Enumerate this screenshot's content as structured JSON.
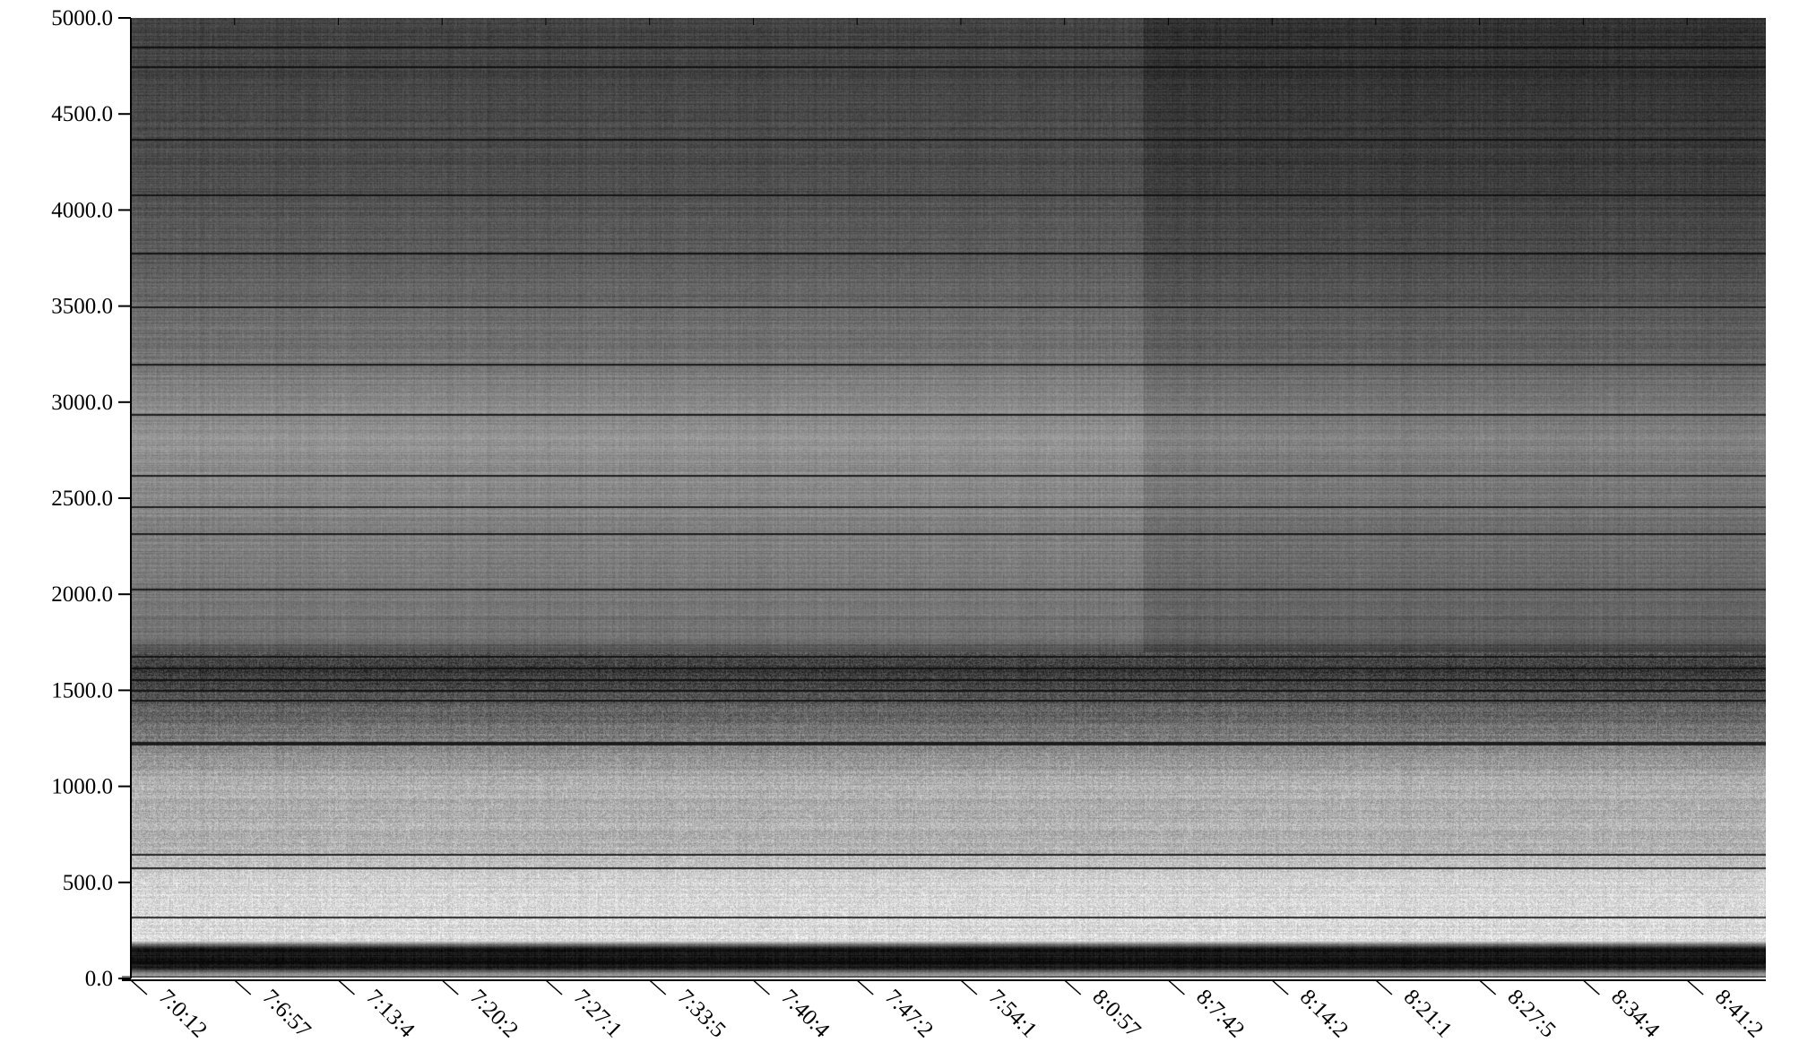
{
  "chart_data": {
    "type": "heatmap",
    "title": "",
    "xlabel": "",
    "ylabel": "",
    "colormap": "grayscale",
    "background": "#ffffff",
    "ylim": [
      0,
      5000
    ],
    "y_ticks": [
      0,
      500,
      1000,
      1500,
      2000,
      2500,
      3000,
      3500,
      4000,
      4500,
      5000
    ],
    "y_tick_labels": [
      "0.0",
      "500.0",
      "1000.0",
      "1500.0",
      "2000.0",
      "2500.0",
      "3000.0",
      "3500.0",
      "4000.0",
      "4500.0",
      "5000.0"
    ],
    "x_tick_labels": [
      "7:0:12",
      "7:6:57",
      "7:13:4",
      "7:20:2",
      "7:27:1",
      "7:33:5",
      "7:40:4",
      "7:47:2",
      "7:54:1",
      "8:0:57",
      "8:7:42",
      "8:14:2",
      "8:21:1",
      "8:27:5",
      "8:34:4",
      "8:41:2"
    ],
    "x_tick_label_rotation_deg": 45,
    "grid": false,
    "intensity_profile_by_y": [
      {
        "y": 0,
        "level": 0.92
      },
      {
        "y": 60,
        "level": 0.08
      },
      {
        "y": 160,
        "level": 0.1
      },
      {
        "y": 200,
        "level": 0.86
      },
      {
        "y": 500,
        "level": 0.83
      },
      {
        "y": 700,
        "level": 0.68
      },
      {
        "y": 1000,
        "level": 0.7
      },
      {
        "y": 1250,
        "level": 0.5
      },
      {
        "y": 1450,
        "level": 0.35
      },
      {
        "y": 1600,
        "level": 0.22
      },
      {
        "y": 1800,
        "level": 0.45
      },
      {
        "y": 2200,
        "level": 0.48
      },
      {
        "y": 2800,
        "level": 0.58
      },
      {
        "y": 3300,
        "level": 0.45
      },
      {
        "y": 3800,
        "level": 0.35
      },
      {
        "y": 4200,
        "level": 0.3
      },
      {
        "y": 5000,
        "level": 0.25
      }
    ],
    "darker_region_after_tick_index": 9,
    "dark_lines_y": [
      90,
      320,
      580,
      650,
      1220,
      1230,
      1450,
      1500,
      1560,
      1620,
      1680,
      2030,
      2320,
      2460,
      2620,
      2940,
      3200,
      3500,
      3780,
      4080,
      4370,
      4750,
      4850
    ]
  }
}
